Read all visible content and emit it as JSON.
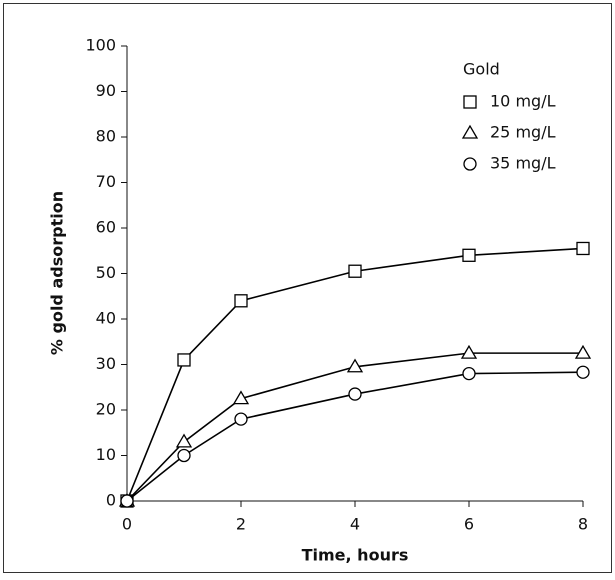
{
  "chart_data": {
    "type": "line",
    "x_label": "Time, hours",
    "y_label": "% gold adsorption",
    "x": [
      0,
      1,
      2,
      4,
      6,
      8
    ],
    "xlim": [
      0,
      8
    ],
    "xticks": [
      0,
      2,
      4,
      6,
      8
    ],
    "ylim": [
      0,
      100
    ],
    "yticks": [
      0,
      10,
      20,
      30,
      40,
      50,
      60,
      70,
      80,
      90,
      100
    ],
    "legend_title": "Gold",
    "legend": "upper right",
    "series": [
      {
        "name": "10 mg/L",
        "color": "#000000",
        "marker": "square",
        "values": [
          0,
          31,
          44,
          50.5,
          54,
          55.5
        ]
      },
      {
        "name": "25 mg/L",
        "color": "#000000",
        "marker": "triangle",
        "values": [
          0,
          13,
          22.5,
          29.5,
          32.5,
          32.5
        ]
      },
      {
        "name": "35 mg/L",
        "color": "#000000",
        "marker": "circle",
        "values": [
          0,
          10,
          18,
          23.5,
          28,
          28.3
        ]
      }
    ]
  }
}
